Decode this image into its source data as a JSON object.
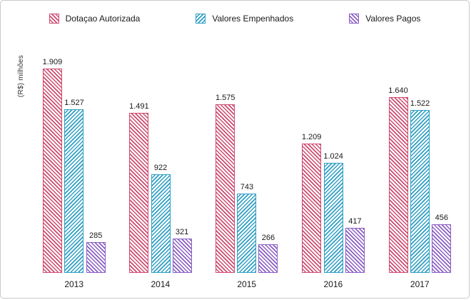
{
  "chart_data": {
    "type": "bar",
    "categories": [
      "2013",
      "2014",
      "2015",
      "2016",
      "2017"
    ],
    "series": [
      {
        "name": "Dotaçao Autorizada",
        "color": "#cf4a70",
        "values": [
          1909,
          1491,
          1575,
          1209,
          1640
        ],
        "labels": [
          "1.909",
          "1.491",
          "1.575",
          "1.209",
          "1.640"
        ]
      },
      {
        "name": "Valores Empenhados",
        "color": "#2e9fc4",
        "values": [
          1527,
          922,
          743,
          1024,
          1522
        ],
        "labels": [
          "1.527",
          "922",
          "743",
          "1.024",
          "1.522"
        ]
      },
      {
        "name": "Valores Pagos",
        "color": "#8a5ec4",
        "values": [
          285,
          321,
          266,
          417,
          456
        ],
        "labels": [
          "285",
          "321",
          "266",
          "417",
          "456"
        ]
      }
    ],
    "title": "",
    "xlabel": "",
    "ylabel": "(R$) milhões",
    "ylim": [
      0,
      2000
    ],
    "grid": false,
    "legend_position": "top",
    "bar_style": "diagonal-hatch"
  }
}
